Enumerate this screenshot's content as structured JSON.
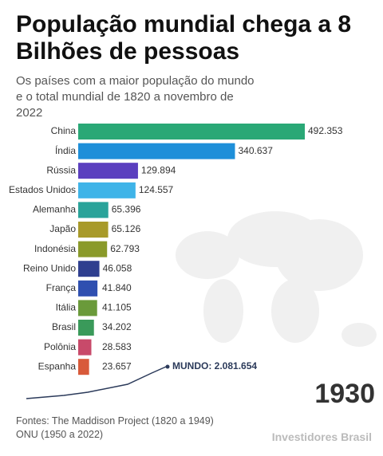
{
  "chart_data": {
    "type": "bar",
    "title": "População mundial chega a 8 Bilhões de pessoas",
    "subtitle": "Os países com a maior população do mundo e o total mundial de 1820 a novembro de 2022",
    "categories": [
      "China",
      "Índia",
      "Rússia",
      "Estados Unidos",
      "Alemanha",
      "Japão",
      "Indonésia",
      "Reino Unido",
      "França",
      "Itália",
      "Brasil",
      "Polônia",
      "Espanha"
    ],
    "values": [
      492353,
      340637,
      129894,
      124557,
      65396,
      65126,
      62793,
      46058,
      41840,
      41105,
      34202,
      28583,
      23657
    ],
    "value_labels": [
      "492.353",
      "340.637",
      "129.894",
      "124.557",
      "65.396",
      "65.126",
      "62.793",
      "46.058",
      "41.840",
      "41.105",
      "34.202",
      "28.583",
      "23.657"
    ],
    "colors": [
      "#2aa876",
      "#1e8fd9",
      "#5b3fbf",
      "#3fb4e8",
      "#2aa39a",
      "#a89a2a",
      "#8a9a2a",
      "#2f3f8f",
      "#2f4fb0",
      "#6a9a3a",
      "#3a9a5a",
      "#c84a6a",
      "#d85a3a"
    ],
    "annotation": "MUNDO: 2.081.654",
    "year": "1930",
    "sources": [
      "Fontes: The Maddison Project (1820 a 1949)",
      "ONU (1950 a 2022)"
    ],
    "watermark": "Investidores Brasil"
  }
}
